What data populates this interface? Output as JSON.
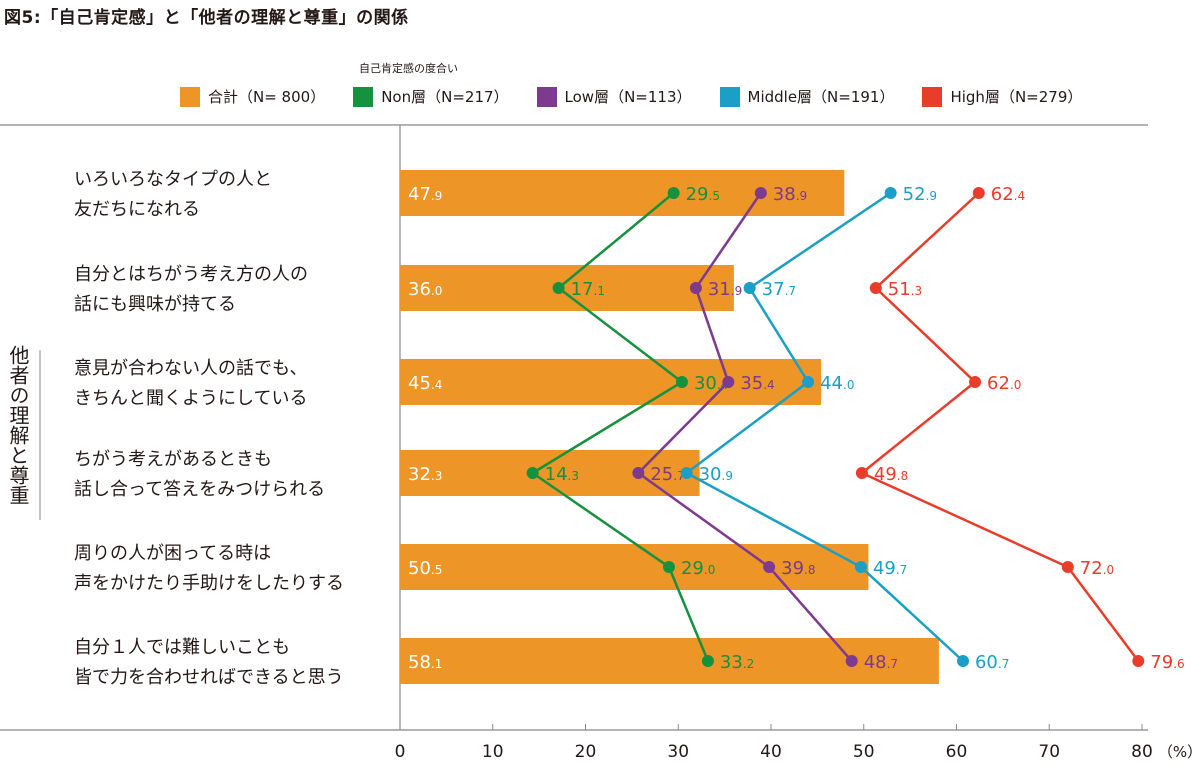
{
  "title": "図5:「自己肯定感」と「他者の理解と尊重」の関係",
  "chart_data": {
    "type": "bar",
    "legend_title": "自己肯定感の度合い",
    "axis_group_label": "他者の理解と尊重",
    "categories": [
      [
        "いろいろなタイプの人と",
        "友だちになれる"
      ],
      [
        "自分とはちがう考え方の人の",
        "話にも興味が持てる"
      ],
      [
        "意見が合わない人の話でも、",
        "きちんと聞くようにしている"
      ],
      [
        "ちがう考えがあるときも",
        "話し合って答えをみつけられる"
      ],
      [
        "周りの人が困ってる時は",
        "声をかけたり手助けをしたりする"
      ],
      [
        "自分１人では難しいことも",
        "皆で力を合わせればできると思う"
      ]
    ],
    "series": [
      {
        "name": "合計（N= 800）",
        "kind": "bar",
        "color": "#ee9527",
        "values": [
          47.9,
          36.0,
          45.4,
          32.3,
          50.5,
          58.1
        ]
      },
      {
        "name": "Non層（N=217）",
        "kind": "line",
        "color": "#16913e",
        "values": [
          29.5,
          17.1,
          30.4,
          14.3,
          29.0,
          33.2
        ]
      },
      {
        "name": "Low層（N=113）",
        "kind": "line",
        "color": "#7d3a8e",
        "values": [
          38.9,
          31.9,
          35.4,
          25.7,
          39.8,
          48.7
        ]
      },
      {
        "name": "Middle層（N=191）",
        "kind": "line",
        "color": "#1b9fc6",
        "values": [
          52.9,
          37.7,
          44.0,
          30.9,
          49.7,
          60.7
        ]
      },
      {
        "name": "High層（N=279）",
        "kind": "line",
        "color": "#e83d2b",
        "values": [
          62.4,
          51.3,
          62.0,
          49.8,
          72.0,
          79.6
        ]
      }
    ],
    "xlim": [
      0,
      80
    ],
    "xticks": [
      "0",
      "10",
      "20",
      "30",
      "40",
      "50",
      "60",
      "70",
      "80"
    ],
    "xunit": "（%）",
    "grid": false,
    "legend_position": "top"
  }
}
